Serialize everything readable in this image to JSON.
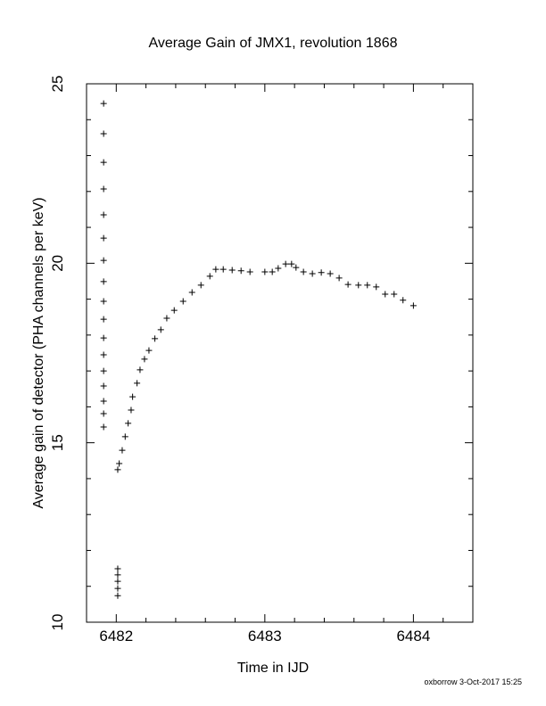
{
  "chart_data": {
    "type": "scatter",
    "title": "Average Gain of JMX1, revolution 1868",
    "x_label": "Time in IJD",
    "y_label": "Average gain of detector (PHA channels per keV)",
    "footer": "oxborrow 3-Oct-2017 15:25",
    "xlim": [
      6481.8,
      6484.4
    ],
    "ylim": [
      10,
      25
    ],
    "xticks": [
      6482,
      6483,
      6484
    ],
    "yticks": [
      10,
      15,
      20,
      25
    ],
    "x_minor_ticks": [
      6481.8,
      6482.2,
      6482.4,
      6482.6,
      6482.8,
      6483.2,
      6483.4,
      6483.6,
      6483.8,
      6484.2,
      6484.4
    ],
    "y_minor_ticks": [
      11,
      12,
      13,
      14,
      16,
      17,
      18,
      19,
      21,
      22,
      23,
      24
    ],
    "marker": "+",
    "color": "#000000",
    "x": [
      6481.915,
      6481.915,
      6481.915,
      6481.915,
      6481.915,
      6481.915,
      6481.915,
      6481.915,
      6481.915,
      6481.915,
      6481.915,
      6481.915,
      6481.915,
      6481.915,
      6481.915,
      6481.915,
      6481.915,
      6482.01,
      6482.01,
      6482.01,
      6482.01,
      6482.01,
      6482.01,
      6482.02,
      6482.04,
      6482.06,
      6482.08,
      6482.1,
      6482.11,
      6482.14,
      6482.16,
      6482.19,
      6482.22,
      6482.26,
      6482.3,
      6482.34,
      6482.39,
      6482.45,
      6482.51,
      6482.57,
      6482.63,
      6482.67,
      6482.72,
      6482.78,
      6482.84,
      6482.9,
      6483.0,
      6483.05,
      6483.09,
      6483.14,
      6483.18,
      6483.21,
      6483.26,
      6483.32,
      6483.38,
      6483.44,
      6483.5,
      6483.56,
      6483.63,
      6483.69,
      6483.75,
      6483.81,
      6483.87,
      6483.93,
      6484.0
    ],
    "values": [
      24.45,
      23.61,
      22.81,
      22.07,
      21.35,
      20.7,
      20.08,
      19.49,
      18.94,
      18.44,
      17.92,
      17.45,
      17.0,
      16.58,
      16.16,
      15.81,
      15.44,
      11.49,
      11.32,
      11.14,
      10.94,
      10.74,
      14.25,
      14.42,
      14.79,
      15.17,
      15.54,
      15.91,
      16.28,
      16.66,
      17.03,
      17.33,
      17.57,
      17.9,
      18.15,
      18.47,
      18.69,
      18.94,
      19.19,
      19.39,
      19.64,
      19.83,
      19.83,
      19.81,
      19.79,
      19.76,
      19.76,
      19.76,
      19.86,
      19.98,
      19.98,
      19.88,
      19.76,
      19.71,
      19.74,
      19.71,
      19.59,
      19.41,
      19.39,
      19.39,
      19.34,
      19.14,
      19.14,
      18.97,
      18.82
    ]
  }
}
